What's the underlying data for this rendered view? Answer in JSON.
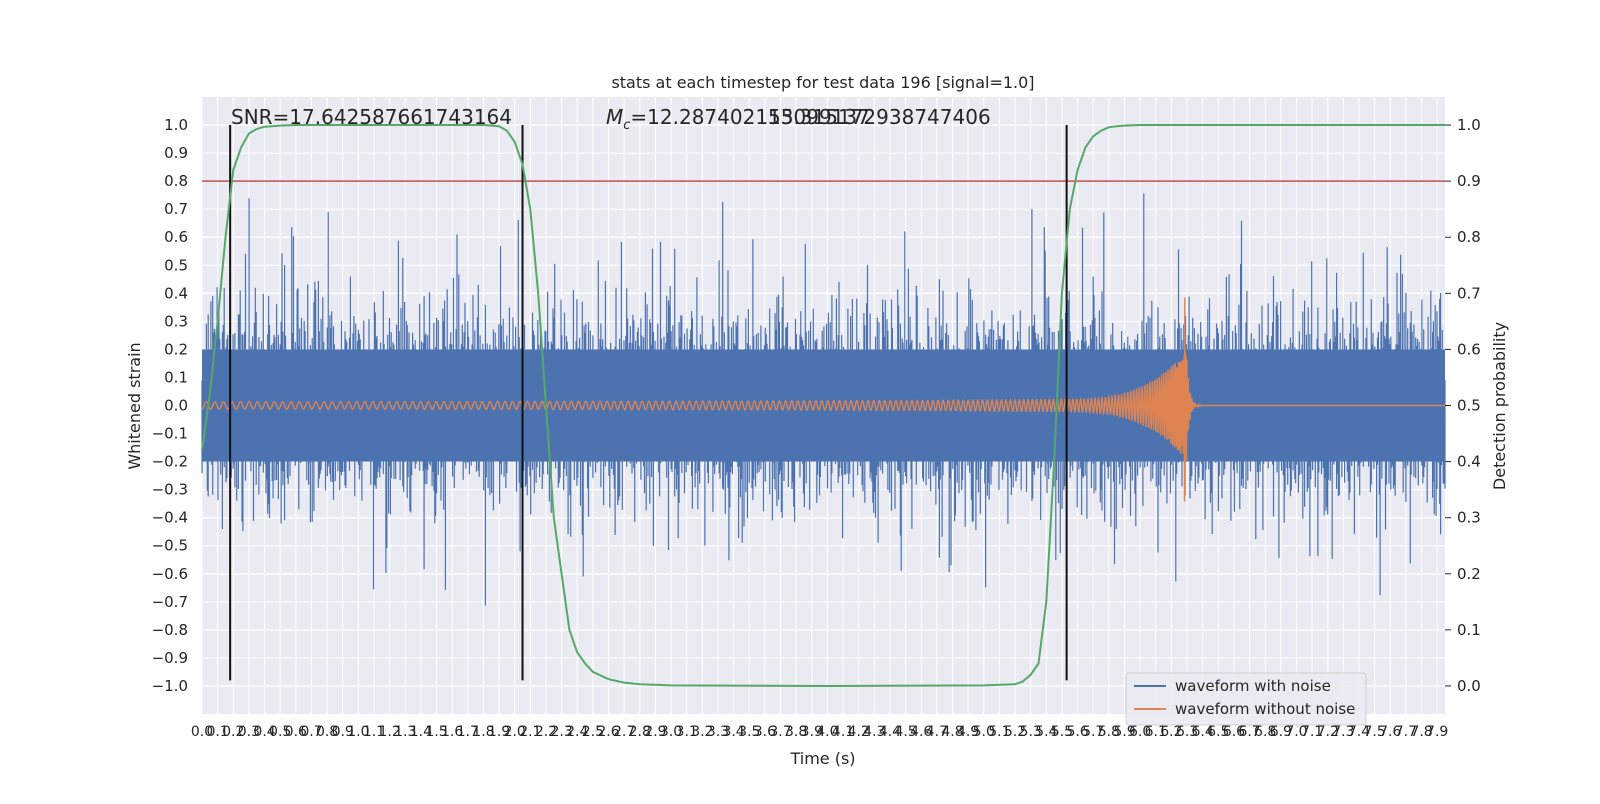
{
  "chart_data": {
    "type": "line",
    "title": "stats at each timestep for test data 196 [signal=1.0]",
    "xlabel": "Time (s)",
    "ylabel_left": "Whitened strain",
    "ylabel_right": "Detection probability",
    "annotation_snr": "SNR=17.642587661743164",
    "annotation_mc_symbol": "M",
    "annotation_mc_sub": "c",
    "annotation_mc_value": "=12.287402153099137",
    "annotation_overlap": "15.315172938747406",
    "xlim": [
      0.0,
      7.95
    ],
    "ylim_left": [
      -1.1,
      1.1
    ],
    "ylim_right": [
      -0.05,
      1.05
    ],
    "x_ticks": [
      0.0,
      0.1,
      0.2,
      0.3,
      0.4,
      0.5,
      0.6,
      0.7,
      0.8,
      0.9,
      1.0,
      1.1,
      1.2,
      1.3,
      1.4,
      1.5,
      1.6,
      1.7,
      1.8,
      1.9,
      2.0,
      2.1,
      2.2,
      2.3,
      2.4,
      2.5,
      2.6,
      2.7,
      2.8,
      2.9,
      3.0,
      3.1,
      3.2,
      3.3,
      3.4,
      3.5,
      3.6,
      3.7,
      3.8,
      3.9,
      4.0,
      4.1,
      4.2,
      4.3,
      4.4,
      4.5,
      4.6,
      4.7,
      4.8,
      4.9,
      5.0,
      5.1,
      5.2,
      5.3,
      5.4,
      5.5,
      5.6,
      5.7,
      5.8,
      5.9,
      6.0,
      6.1,
      6.2,
      6.3,
      6.4,
      6.5,
      6.6,
      6.7,
      6.8,
      6.9,
      7.0,
      7.1,
      7.2,
      7.3,
      7.4,
      7.5,
      7.6,
      7.7,
      7.8,
      7.9
    ],
    "x_tick_labels": [
      "0.0",
      "0.1",
      "0.2",
      "0.3",
      "0.4",
      "0.5",
      "0.6",
      "0.7",
      "0.8",
      "0.9",
      "1.0",
      "1.1",
      "1.2",
      "1.3",
      "1.4",
      "1.5",
      "1.6",
      "1.7",
      "1.8",
      "1.9",
      "2.0",
      "2.1",
      "2.2",
      "2.3",
      "2.4",
      "2.5",
      "2.6",
      "2.7",
      "2.8",
      "2.9",
      "3.0",
      "3.1",
      "3.2",
      "3.3",
      "3.4",
      "3.5",
      "3.6",
      "3.7",
      "3.8",
      "3.9",
      "4.0",
      "4.1",
      "4.2",
      "4.3",
      "4.4",
      "4.5",
      "4.6",
      "4.7",
      "4.8",
      "4.9",
      "5.0",
      "5.1",
      "5.2",
      "5.3",
      "5.4",
      "5.5",
      "5.6",
      "5.7",
      "5.8",
      "5.9",
      "6.0",
      "6.1",
      "6.2",
      "6.3",
      "6.4",
      "6.5",
      "6.6",
      "6.7",
      "6.8",
      "6.9",
      "7.0",
      "7.1",
      "7.2",
      "7.3",
      "7.4",
      "7.5",
      "7.6",
      "7.7",
      "7.8",
      "7.9"
    ],
    "y_left_ticks": [
      1.0,
      0.9,
      0.8,
      0.7,
      0.6,
      0.5,
      0.4,
      0.3,
      0.2,
      0.1,
      0.0,
      -0.1,
      -0.2,
      -0.3,
      -0.4,
      -0.5,
      -0.6,
      -0.7,
      -0.8,
      -0.9,
      -1.0
    ],
    "y_left_tick_labels": [
      "1.0",
      "0.9",
      "0.8",
      "0.7",
      "0.6",
      "0.5",
      "0.4",
      "0.3",
      "0.2",
      "0.1",
      "0.0",
      "−0.1",
      "−0.2",
      "−0.3",
      "−0.4",
      "−0.5",
      "−0.6",
      "−0.7",
      "−0.8",
      "−0.9",
      "−1.0"
    ],
    "y_right_ticks": [
      1.0,
      0.9,
      0.8,
      0.7,
      0.6,
      0.5,
      0.4,
      0.3,
      0.2,
      0.1,
      0.0
    ],
    "y_right_tick_labels": [
      "1.0",
      "0.9",
      "0.8",
      "0.7",
      "0.6",
      "0.5",
      "0.4",
      "0.3",
      "0.2",
      "0.1",
      "0.0"
    ],
    "threshold_line": {
      "y_left": 0.8,
      "color": "#c44e52"
    },
    "vertical_markers_x": [
      0.18,
      2.05,
      5.53
    ],
    "detection_probability": {
      "color": "#55a868",
      "x": [
        0.0,
        0.05,
        0.1,
        0.15,
        0.2,
        0.25,
        0.3,
        0.35,
        0.4,
        0.5,
        0.6,
        0.8,
        1.0,
        1.5,
        1.8,
        1.9,
        1.95,
        2.0,
        2.05,
        2.1,
        2.15,
        2.2,
        2.25,
        2.3,
        2.35,
        2.4,
        2.45,
        2.5,
        2.6,
        2.7,
        2.8,
        3.0,
        4.0,
        5.0,
        5.2,
        5.25,
        5.3,
        5.35,
        5.4,
        5.45,
        5.5,
        5.55,
        5.6,
        5.65,
        5.7,
        5.75,
        5.8,
        5.85,
        5.9,
        6.0,
        7.0,
        7.95
      ],
      "y": [
        0.42,
        0.52,
        0.65,
        0.8,
        0.92,
        0.96,
        0.985,
        0.993,
        0.997,
        0.999,
        1.0,
        1.0,
        1.0,
        1.0,
        1.0,
        0.998,
        0.99,
        0.97,
        0.93,
        0.85,
        0.7,
        0.5,
        0.3,
        0.2,
        0.1,
        0.06,
        0.04,
        0.025,
        0.012,
        0.006,
        0.003,
        0.001,
        0.0,
        0.001,
        0.003,
        0.008,
        0.02,
        0.04,
        0.15,
        0.4,
        0.7,
        0.85,
        0.92,
        0.96,
        0.98,
        0.99,
        0.996,
        0.998,
        0.999,
        1.0,
        1.0,
        1.0
      ]
    },
    "series": [
      {
        "name": "waveform with noise",
        "color": "#4c72b0",
        "axis": "left"
      },
      {
        "name": "waveform without noise",
        "color": "#dd8452",
        "axis": "left"
      },
      {
        "name": "detection probability",
        "color": "#55a868",
        "axis": "right"
      }
    ],
    "legend": {
      "placement": "lower-right",
      "entries": [
        {
          "label": "waveform with noise",
          "color": "#4c72b0"
        },
        {
          "label": "waveform without noise",
          "color": "#dd8452"
        }
      ]
    },
    "grid": true,
    "background_color": "#eaeaf2"
  }
}
